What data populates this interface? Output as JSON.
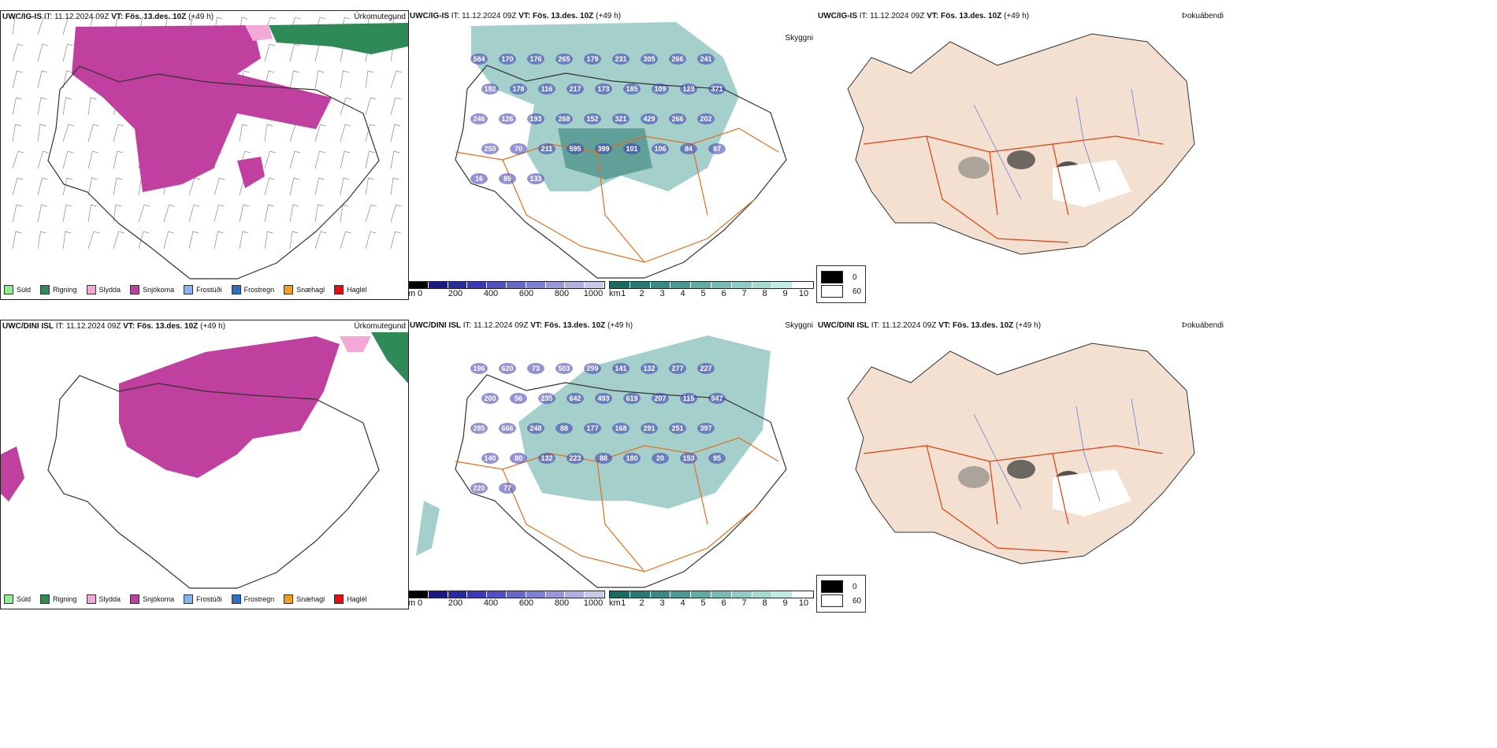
{
  "rows": [
    {
      "model_id": "UWC/IG-IS",
      "it_label": "IT:",
      "issue_time": "11.12.2024 09Z",
      "vt_label": "VT:",
      "valid_time": "Fös. 13.des. 10Z",
      "lead": "(+49 h)",
      "labels": {
        "precip": "Úrkomutegund",
        "visibility": "Skyggni",
        "fog": "Þokuábendi"
      },
      "cloud_values": [
        "584",
        "170",
        "176",
        "265",
        "179",
        "231",
        "305",
        "266",
        "241",
        "192",
        "178",
        "116",
        "217",
        "173",
        "185",
        "109",
        "123",
        "371",
        "246",
        "126",
        "193",
        "268",
        "152",
        "321",
        "429",
        "266",
        "202",
        "250",
        "70",
        "211",
        "595",
        "399",
        "101",
        "106",
        "84",
        "87",
        "16",
        "85",
        "133"
      ]
    },
    {
      "model_id": "UWC/DINI ISL",
      "it_label": "IT:",
      "issue_time": "11.12.2024 09Z",
      "vt_label": "VT:",
      "valid_time": "Fös. 13.des. 10Z",
      "lead": "(+49 h)",
      "labels": {
        "precip": "Úrkomutegund",
        "visibility": "Skyggni",
        "fog": "Þokuábendi"
      },
      "cloud_values": [
        "196",
        "620",
        "73",
        "503",
        "299",
        "141",
        "132",
        "277",
        "227",
        "200",
        "56",
        "235",
        "642",
        "493",
        "619",
        "207",
        "115",
        "947",
        "285",
        "666",
        "248",
        "88",
        "177",
        "168",
        "291",
        "251",
        "397",
        "140",
        "80",
        "132",
        "223",
        "88",
        "180",
        "20",
        "153",
        "95",
        "220",
        "77"
      ]
    }
  ],
  "precip_legend": [
    {
      "label": "Súld",
      "color": "#90ee90"
    },
    {
      "label": "Rigning",
      "color": "#2e8b57"
    },
    {
      "label": "Slydda",
      "color": "#f4a8d8"
    },
    {
      "label": "Snjókoma",
      "color": "#c040a0"
    },
    {
      "label": "Frostúði",
      "color": "#87b4f0"
    },
    {
      "label": "Frostregn",
      "color": "#3070c0"
    },
    {
      "label": "Snæhagl",
      "color": "#f0a020"
    },
    {
      "label": "Haglél",
      "color": "#e01010"
    }
  ],
  "cloudbase_scale": {
    "unit": "m",
    "ticks": [
      "0",
      "200",
      "400",
      "600",
      "800",
      "1000"
    ]
  },
  "visibility_scale": {
    "unit": "km",
    "ticks": [
      "1",
      "2",
      "3",
      "4",
      "5",
      "6",
      "7",
      "8",
      "9",
      "10"
    ]
  },
  "fog_legend": {
    "items": [
      {
        "label": "0",
        "color": "#000000"
      },
      {
        "label": "60",
        "color": "#ffffff"
      }
    ]
  },
  "colors": {
    "snow": "#c040a0",
    "rain": "#2e8b57",
    "teal": "#5aa8a0",
    "cloud": "#3a3ab0",
    "road": "#e07020",
    "land": "#f3e0d0",
    "river": "#6080e0"
  }
}
